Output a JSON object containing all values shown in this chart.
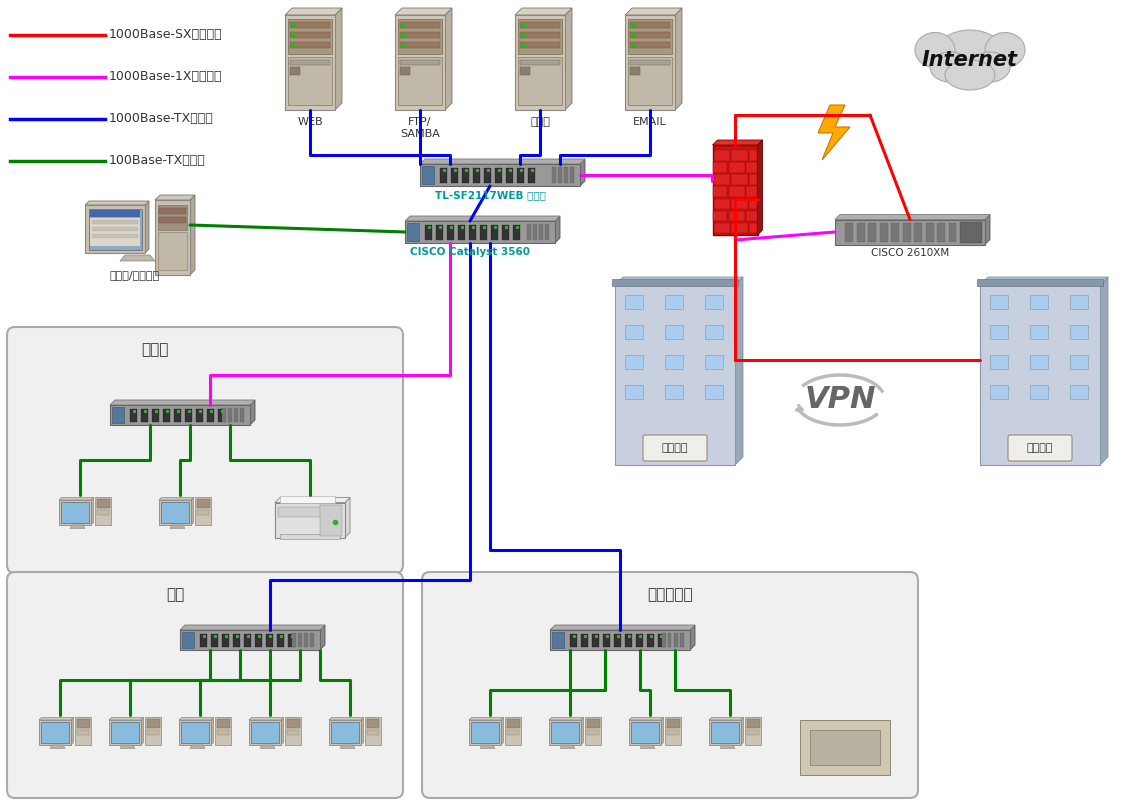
{
  "bg_color": "#ffffff",
  "legend_items": [
    {
      "label": "1000Base-SX多模光纤",
      "color": "#ff0000"
    },
    {
      "label": "1000Base-1X单模光纤",
      "color": "#ff00ff"
    },
    {
      "label": "1000Base-TX双绞线",
      "color": "#0000ff"
    },
    {
      "label": "100Base-TX双绞线",
      "color": "#008000"
    }
  ],
  "labels": {
    "web": "WEB",
    "ftp": "FTP/\nSAMBA",
    "media": "流媒体",
    "email": "EMAIL",
    "switch1": "TL-SF2117WEB 交换机",
    "switch2": "CISCO Catalyst 3560",
    "cisco_router": "CISCO 2610XM",
    "workstation": "工作站/域控制器",
    "office": "办公区",
    "computer_room": "机房",
    "multimedia": "多媒体教室",
    "xidian": "西电校区",
    "waiyuan": "外院校区",
    "internet": "Internet",
    "vpn": "VPN"
  },
  "colors": {
    "red": "#ff0000",
    "magenta": "#ff00ff",
    "blue": "#0000ff",
    "green": "#008000",
    "firewall": "#cc2222",
    "box_bg": "#e8e8e8",
    "box_border": "#999999",
    "server_body": "#d0c8b8",
    "server_dark": "#b0a898",
    "server_darker": "#908880",
    "switch_body": "#a0a0a0",
    "switch_dark": "#707070",
    "building_wall": "#c0c8d8",
    "building_roof": "#8898a8",
    "building_window": "#aaccee",
    "cloud_fill": "#d8d8d8",
    "text_dark": "#333333",
    "text_cyan": "#009999",
    "text_cyan2": "#009900",
    "vpn_gray": "#aaaaaa",
    "lightning_fill": "#ffaa00",
    "screen_blue": "#88bbdd"
  }
}
